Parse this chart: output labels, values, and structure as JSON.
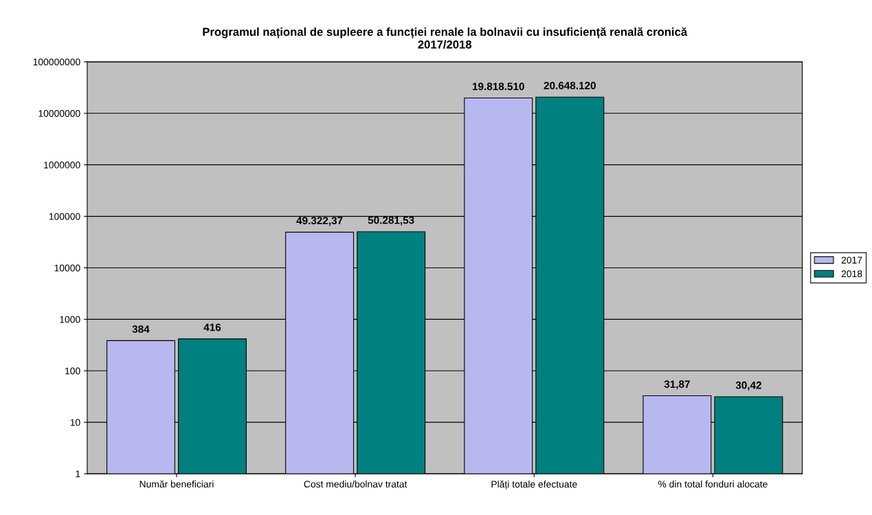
{
  "chart_data": {
    "type": "bar",
    "title": "Programul național de supleere a funcției renale la bolnavii cu insuficiență renală cronică\n2017/2018",
    "categories": [
      "Număr beneficiari",
      "Cost mediu/bolnav tratat",
      "Plăți totale efectuate",
      "% din total fonduri alocate"
    ],
    "series": [
      {
        "name": "2017",
        "color": "#b8b8f0",
        "values": [
          384,
          49322.37,
          19818510,
          31.87
        ],
        "value_labels": [
          "384",
          "49.322,37",
          "19.818.510",
          "31,87"
        ]
      },
      {
        "name": "2018",
        "color": "#008080",
        "values": [
          416,
          50281.53,
          20648120,
          30.42
        ],
        "value_labels": [
          "416",
          "50.281,53",
          "20.648.120",
          "30,42"
        ]
      }
    ],
    "log": true,
    "ylim": [
      1,
      100000000
    ],
    "yticks": [
      1,
      10,
      100,
      1000,
      10000,
      100000,
      1000000,
      10000000,
      100000000
    ],
    "grid": "y",
    "legend": "right"
  }
}
